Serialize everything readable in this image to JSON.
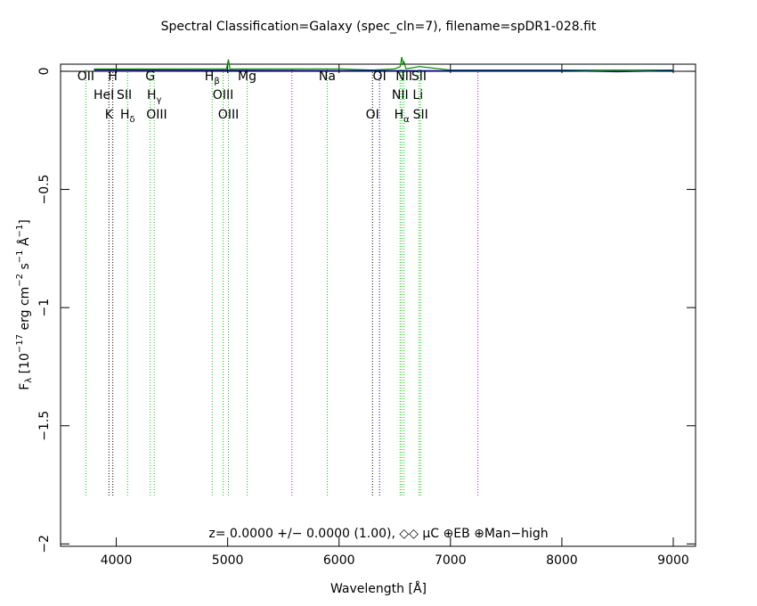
{
  "chart_data": {
    "type": "line",
    "title": "Spectral Classification=Galaxy (spec_cln=7), filename=spDR1-028.fit",
    "xlabel": "Wavelength [Å]",
    "ylabel": [
      "F",
      "λ",
      " [10",
      "−17",
      " erg cm",
      "−2",
      " s",
      "−1",
      " Å",
      "−1",
      "]"
    ],
    "annotation": "z= 0.0000 +/− 0.0000 (1.00), ◇◇  μC ⊕EB ⊕Man−high",
    "xlim": [
      3500,
      9200
    ],
    "ylim": [
      -2.01,
      0.03
    ],
    "xticks": [
      4000,
      5000,
      6000,
      7000,
      8000,
      9000
    ],
    "yticks": [
      0,
      {
        "value": -0.5,
        "label": "−0.5"
      },
      {
        "value": -1,
        "label": "−1"
      },
      {
        "value": -1.5,
        "label": "−1.5"
      },
      {
        "value": -2,
        "label": "−2"
      }
    ],
    "series": [
      {
        "color": "#008800",
        "x": [
          3800,
          4000,
          4500,
          4900,
          4990,
          5007,
          5020,
          5500,
          6000,
          6300,
          6500,
          6550,
          6563,
          6575,
          6583,
          6600,
          6720,
          7000,
          8000,
          9000
        ],
        "values": [
          0.01,
          0.01,
          0.01,
          0.01,
          0.01,
          0.05,
          0.01,
          0.01,
          0.01,
          0.005,
          0.01,
          0.02,
          0.06,
          0.03,
          0.04,
          0.01,
          0.02,
          0.005,
          0.005,
          0.005
        ]
      },
      {
        "color": "#000088",
        "x": [
          3800,
          5000,
          6000,
          7000,
          8000,
          8500,
          9000
        ],
        "values": [
          0.005,
          0.004,
          0.003,
          0.002,
          0.002,
          -0.002,
          0.002
        ]
      }
    ],
    "lines": [
      {
        "wavelength": 3727,
        "color": "#00cc00"
      },
      {
        "wavelength": 3934,
        "color": "#000000"
      },
      {
        "wavelength": 3969,
        "color": "#000000"
      },
      {
        "wavelength": 4102,
        "color": "#00cc00"
      },
      {
        "wavelength": 4305,
        "color": "#00cc00"
      },
      {
        "wavelength": 4341,
        "color": "#00cc00"
      },
      {
        "wavelength": 4861,
        "color": "#00cc00"
      },
      {
        "wavelength": 4959,
        "color": "#00cc00"
      },
      {
        "wavelength": 5007,
        "color": "#00cc00"
      },
      {
        "wavelength": 5175,
        "color": "#00cc00"
      },
      {
        "wavelength": 5577,
        "color": "#cc00cc"
      },
      {
        "wavelength": 5894,
        "color": "#00cc00"
      },
      {
        "wavelength": 6300,
        "color": "#000000"
      },
      {
        "wavelength": 6363,
        "color": "#0000cc"
      },
      {
        "wavelength": 6548,
        "color": "#00cc00"
      },
      {
        "wavelength": 6563,
        "color": "#00cc00"
      },
      {
        "wavelength": 6583,
        "color": "#00cc00"
      },
      {
        "wavelength": 6717,
        "color": "#00cc00"
      },
      {
        "wavelength": 6731,
        "color": "#00cc00"
      },
      {
        "wavelength": 7246,
        "color": "#cc00cc"
      }
    ],
    "label_rows": [
      [
        {
          "wavelength": 3727,
          "text": "OII"
        },
        {
          "wavelength": 3969,
          "text": "H"
        },
        {
          "wavelength": 4305,
          "text": "G"
        },
        {
          "wavelength": 4861,
          "text": "H",
          "sub": "β"
        },
        {
          "wavelength": 5175,
          "text": "Mg"
        },
        {
          "wavelength": 5894,
          "text": "Na"
        },
        {
          "wavelength": 6363,
          "text": "OI"
        },
        {
          "wavelength": 6583,
          "text": "NII"
        },
        {
          "wavelength": 6717,
          "text": "SII"
        }
      ],
      [
        {
          "wavelength": 3889,
          "text": "HeI"
        },
        {
          "wavelength": 4072,
          "text": "SII"
        },
        {
          "wavelength": 4341,
          "text": "H",
          "sub": "γ"
        },
        {
          "wavelength": 4959,
          "text": "OIII"
        },
        {
          "wavelength": 6548,
          "text": "NII"
        },
        {
          "wavelength": 6708,
          "text": "Li"
        }
      ],
      [
        {
          "wavelength": 3934,
          "text": "K"
        },
        {
          "wavelength": 4102,
          "text": "H",
          "sub": "δ"
        },
        {
          "wavelength": 4363,
          "text": "OIII"
        },
        {
          "wavelength": 5007,
          "text": "OIII"
        },
        {
          "wavelength": 6300,
          "text": "OI"
        },
        {
          "wavelength": 6563,
          "text": "H",
          "sub": "α"
        },
        {
          "wavelength": 6731,
          "text": "SII"
        }
      ]
    ]
  }
}
